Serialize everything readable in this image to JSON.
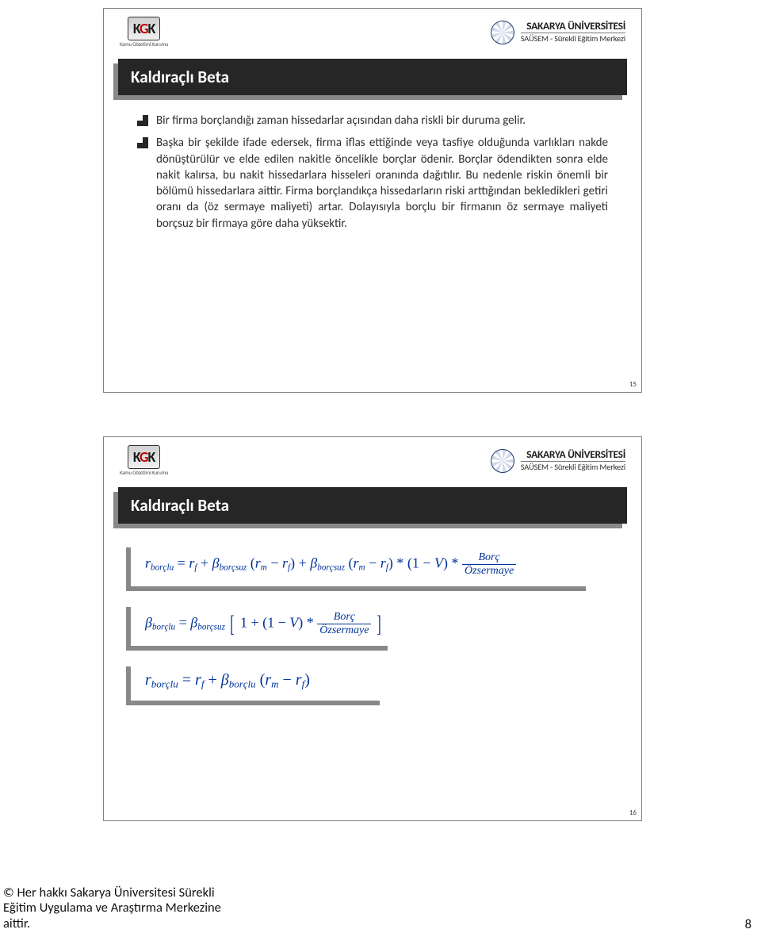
{
  "branding": {
    "logo_kgk_main": "KGK",
    "logo_kgk_sub": "Kamu Gözetimi Kurumu",
    "uni_name": "SAKARYA ÜNİVERSİTESİ",
    "uni_sub": "SAÜSEM - Sürekli Eğitim Merkezi",
    "accent_color": "#c00000",
    "header_dark": "#262626",
    "shadow_color": "#888888",
    "formula_text_color": "#003399"
  },
  "slide1": {
    "title": "Kaldıraçlı Beta",
    "bullet1": "Bir firma borçlandığı zaman hissedarlar açısından daha riskli bir duruma gelir.",
    "bullet2": "Başka bir şekilde ifade edersek, firma iflas ettiğinde veya tasfiye olduğunda varlıkları nakde dönüştürülür ve elde edilen nakitle öncelikle borçlar ödenir. Borçlar ödendikten sonra elde nakit kalırsa, bu nakit hissedarlara hisseleri oranında dağıtılır. Bu nedenle riskin önemli bir bölümü hissedarlara aittir. Firma borçlandıkça hissedarların riski arttığından bekledikleri getiri oranı da (öz sermaye maliyeti) artar. Dolayısıyla borçlu bir firmanın öz sermaye maliyeti borçsuz bir firmaya göre daha yüksektir.",
    "num": "15"
  },
  "slide2": {
    "title": "Kaldıraçlı Beta",
    "formula_terms": {
      "r": "r",
      "beta": "β",
      "borclu": "borçlu",
      "borcsuz": "borçsuz",
      "f": "f",
      "m": "m",
      "V": "V",
      "borc": "Borç",
      "ozsermaye": "Özsermaye",
      "one": "1"
    },
    "num": "16"
  },
  "footer": {
    "line1": "© Her hakkı Sakarya Üniversitesi Sürekli",
    "line2": "Eğitim Uygulama ve Araştırma Merkezine",
    "line3": "aittir.",
    "page_num": "8"
  }
}
